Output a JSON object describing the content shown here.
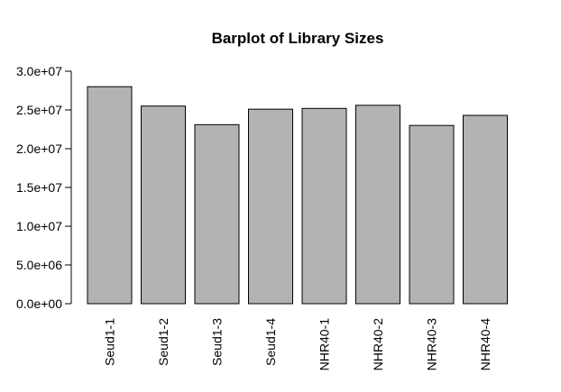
{
  "chart_data": {
    "type": "bar",
    "title": "Barplot of Library Sizes",
    "xlabel": "",
    "ylabel": "",
    "categories": [
      "Seud1-1",
      "Seud1-2",
      "Seud1-3",
      "Seud1-4",
      "NHR40-1",
      "NHR40-2",
      "NHR40-3",
      "NHR40-4"
    ],
    "values": [
      28000000,
      25500000,
      23100000,
      25100000,
      25200000,
      25600000,
      23000000,
      24300000
    ],
    "ylim": [
      0,
      30000000
    ],
    "y_ticks": [
      0,
      5000000,
      10000000,
      15000000,
      20000000,
      25000000,
      30000000
    ],
    "y_tick_labels": [
      "0.0e+00",
      "5.0e+06",
      "1.0e+07",
      "1.5e+07",
      "2.0e+07",
      "2.5e+07",
      "3.0e+07"
    ],
    "bar_color": "#b3b3b3",
    "bar_border_color": "#000000",
    "grid": false,
    "legend": "none"
  }
}
